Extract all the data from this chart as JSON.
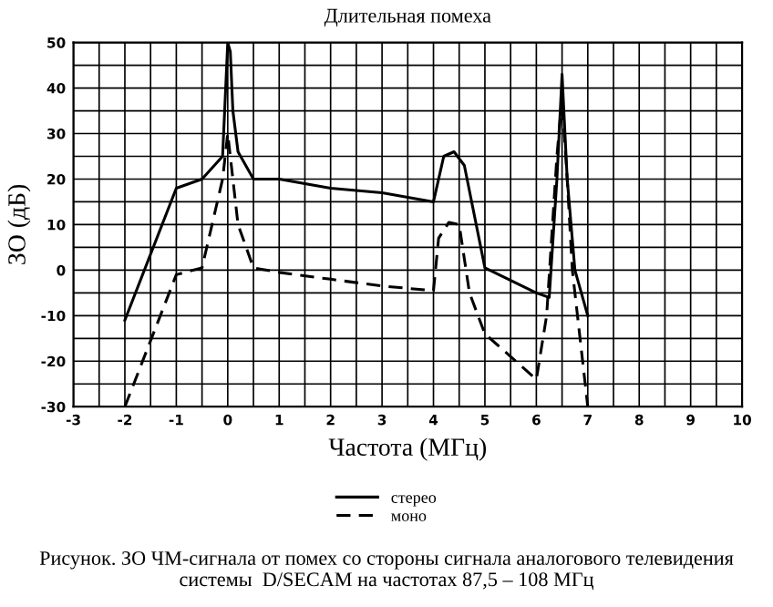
{
  "chart_data": {
    "type": "line",
    "title": "Длительная помеха",
    "xlabel": "Частота (МГц)",
    "ylabel": "ЗО (дБ)",
    "xlim": [
      -3,
      10
    ],
    "ylim": [
      -30,
      50
    ],
    "xticks": [
      -3,
      {
        "value": -2.5,
        "label": null
      },
      -2,
      {
        "value": -1.5,
        "label": null
      },
      -1,
      {
        "value": -0.5,
        "label": null
      },
      0,
      {
        "value": 0.5,
        "label": null
      },
      1,
      {
        "value": 1.5,
        "label": null
      },
      2,
      {
        "value": 2.5,
        "label": null
      },
      3,
      {
        "value": 3.5,
        "label": null
      },
      4,
      {
        "value": 4.5,
        "label": null
      },
      5,
      {
        "value": 5.5,
        "label": null
      },
      6,
      {
        "value": 6.5,
        "label": null
      },
      7,
      {
        "value": 7.5,
        "label": null
      },
      8,
      {
        "value": 8.5,
        "label": null
      },
      9,
      {
        "value": 9.5,
        "label": null
      },
      10
    ],
    "yticks": [
      -30,
      {
        "value": -25,
        "label": null
      },
      -20,
      {
        "value": -15,
        "label": null
      },
      -10,
      {
        "value": -5,
        "label": null
      },
      0,
      {
        "value": 5,
        "label": null
      },
      10,
      {
        "value": 15,
        "label": null
      },
      20,
      {
        "value": 25,
        "label": null
      },
      30,
      {
        "value": 35,
        "label": null
      },
      40,
      {
        "value": 45,
        "label": null
      },
      50
    ],
    "grid": true,
    "legend": "bottom",
    "series": [
      {
        "name": "стерео",
        "color": "#000000",
        "line_style": "solid",
        "x": [
          -2,
          -1,
          -0.5,
          -0.1,
          0,
          0.05,
          0.1,
          0.2,
          0.5,
          1,
          2,
          3,
          4,
          4.2,
          4.4,
          4.6,
          5,
          6,
          6.25,
          6.4,
          6.5,
          6.6,
          6.75,
          7
        ],
        "values": [
          -11,
          18,
          20,
          25,
          50,
          48,
          35,
          26,
          20,
          20,
          18,
          17,
          15,
          25,
          26,
          23,
          0.5,
          -5,
          -6,
          20,
          43,
          20,
          0,
          -10
        ]
      },
      {
        "name": "моно",
        "color": "#000000",
        "line_style": "dashed",
        "x": [
          -2,
          -1,
          -0.5,
          -0.1,
          0,
          0.1,
          0.2,
          0.5,
          1,
          2,
          3,
          4,
          4.1,
          4.3,
          4.5,
          4.7,
          5,
          6,
          6.2,
          6.4,
          6.5,
          6.6,
          6.7,
          7
        ],
        "values": [
          -30,
          -1,
          0.5,
          20,
          30,
          20,
          10,
          0.5,
          -0.5,
          -2,
          -3.5,
          -4.5,
          7,
          10.5,
          10,
          -5,
          -14,
          -24,
          -10,
          25,
          38,
          20,
          0,
          -30
        ]
      }
    ],
    "annotations": [
      "Рисунок. ЗО ЧМ-сигнала от помех со стороны сигнала аналогового телевидения системы  D/SECAM на частотах 87,5 – 108 МГц"
    ]
  }
}
